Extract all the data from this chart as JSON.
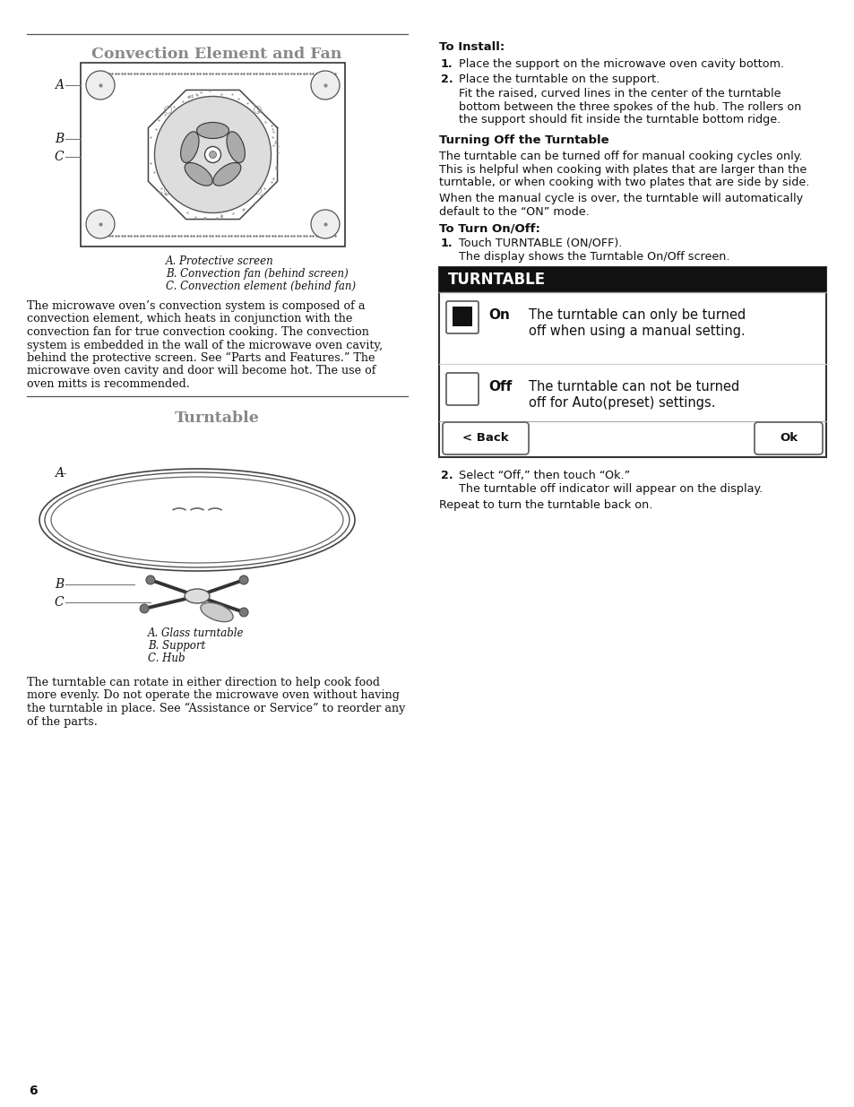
{
  "bg_color": "#ffffff",
  "text_color": "#000000",
  "title1": "Convection Element and Fan",
  "title2": "Turntable",
  "section1_captions": [
    "A. Protective screen",
    "B. Convection fan (behind screen)",
    "C. Convection element (behind fan)"
  ],
  "section1_body": "The microwave oven’s convection system is composed of a\nconvection element, which heats in conjunction with the\nconvection fan for true convection cooking. The convection\nsystem is embedded in the wall of the microwave oven cavity,\nbehind the protective screen. See “Parts and Features.” The\nmicrowave oven cavity and door will become hot. The use of\noven mitts is recommended.",
  "section2_captions": [
    "A. Glass turntable",
    "B. Support",
    "C. Hub"
  ],
  "section2_body": "The turntable can rotate in either direction to help cook food\nmore evenly. Do not operate the microwave oven without having\nthe turntable in place. See “Assistance or Service” to reorder any\nof the parts.",
  "right_col_title1": "To Install:",
  "right_step1": "Place the support on the microwave oven cavity bottom.",
  "right_step2": "Place the turntable on the support.",
  "right_step2_extra": "Fit the raised, curved lines in the center of the turntable\nbottom between the three spokes of the hub. The rollers on\nthe support should fit inside the turntable bottom ridge.",
  "right_section2_title": "Turning Off the Turntable",
  "right_section2_body": "The turntable can be turned off for manual cooking cycles only.\nThis is helpful when cooking with plates that are larger than the\nturntable, or when cooking with two plates that are side by side.",
  "right_section2_body2": "When the manual cycle is over, the turntable will automatically\ndefault to the “ON” mode.",
  "right_section3_title": "To Turn On/Off:",
  "right_step3_1": "Touch TURNTABLE (ON/OFF).",
  "right_step3_1_extra": "The display shows the Turntable On/Off screen.",
  "turntable_box_title": "TURNTABLE",
  "turntable_on_label": "On",
  "turntable_on_text": "The turntable can only be turned\noff when using a manual setting.",
  "turntable_off_label": "Off",
  "turntable_off_text": "The turntable can not be turned\noff for Auto(preset) settings.",
  "turntable_back": "< Back",
  "turntable_ok": "Ok",
  "right_step4": "Select “Off,” then touch “Ok.”",
  "right_step4_extra": "The turntable off indicator will appear on the display.",
  "right_body_end": "Repeat to turn the turntable back on.",
  "page_number": "6"
}
